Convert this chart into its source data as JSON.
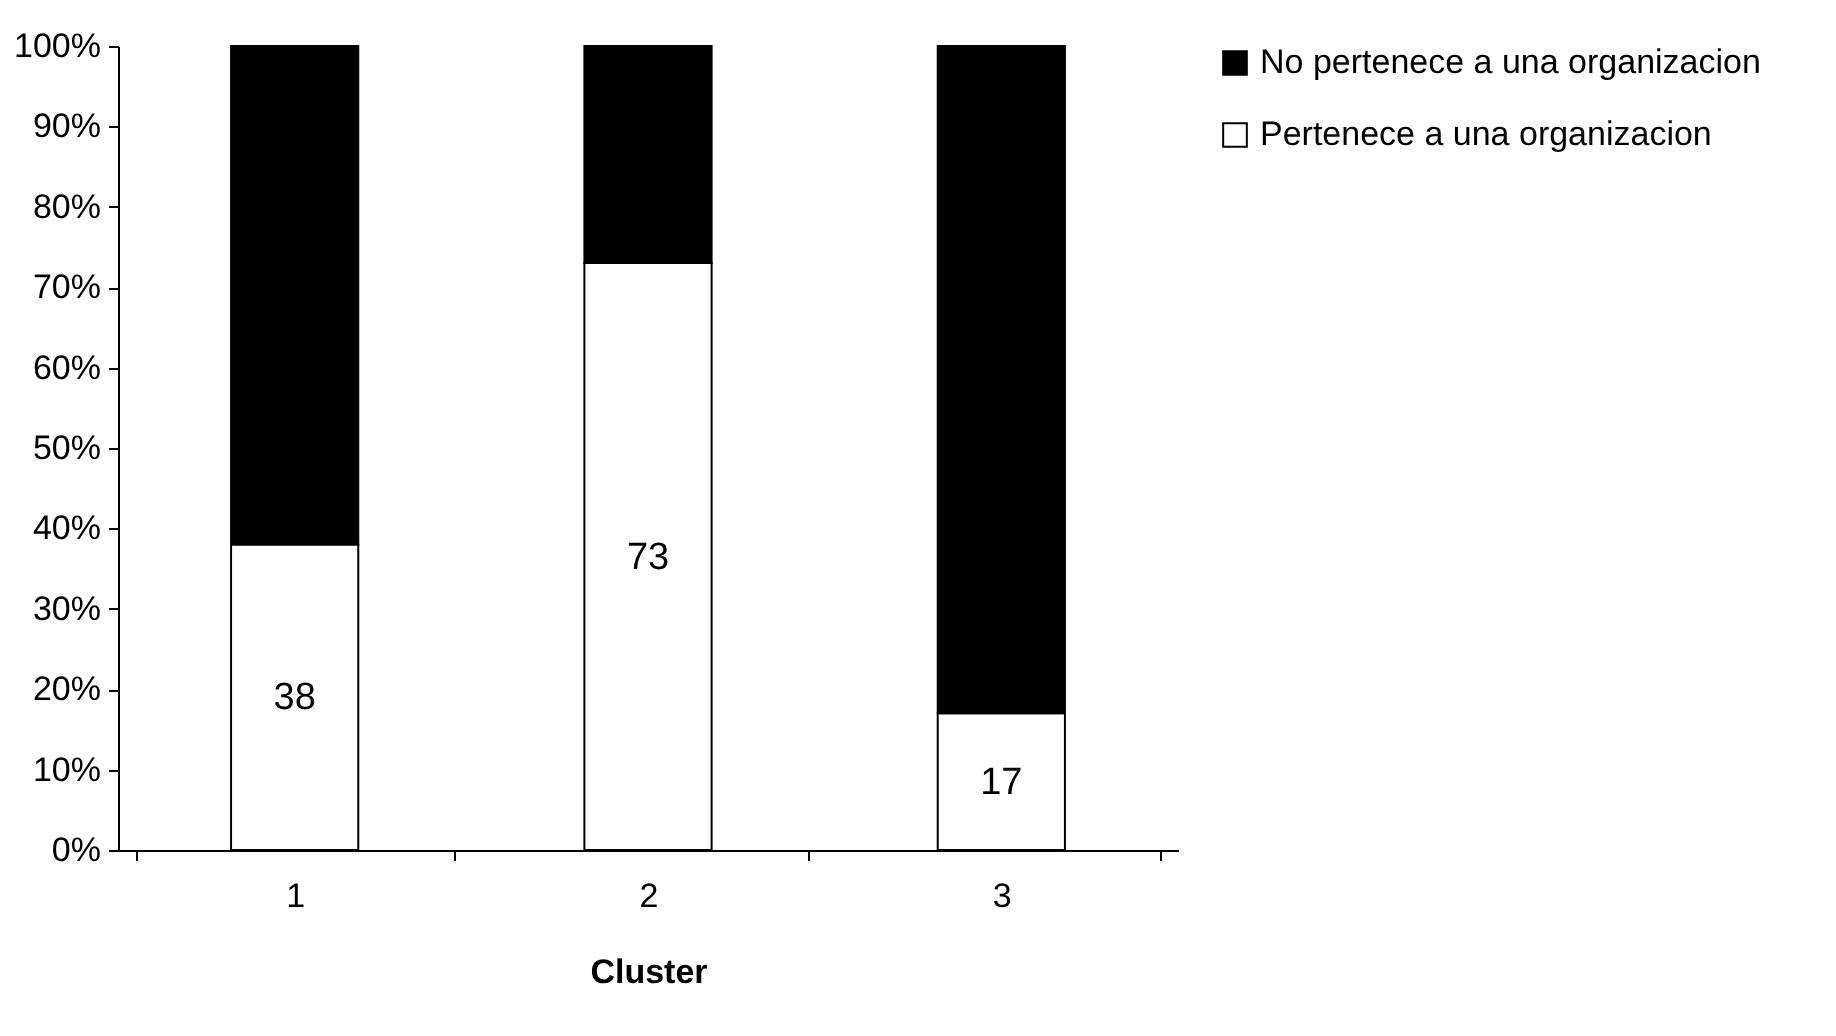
{
  "chart_data": {
    "type": "bar",
    "xlabel": "Cluster",
    "categories": [
      "1",
      "2",
      "3"
    ],
    "stacked": true,
    "series": [
      {
        "name": "Pertenece a una organizacion",
        "color": "#ffffff",
        "values": [
          38,
          73,
          17
        ],
        "value_labels": [
          "38",
          "73",
          "17"
        ]
      },
      {
        "name": "No pertenece a una organizacion",
        "color": "#000000",
        "values": [
          62,
          27,
          83
        ]
      }
    ],
    "ylim": [
      0,
      100
    ],
    "yticks": [
      {
        "value": 0,
        "label": "0%"
      },
      {
        "value": 10,
        "label": "10%"
      },
      {
        "value": 20,
        "label": "20%"
      },
      {
        "value": 30,
        "label": "30%"
      },
      {
        "value": 40,
        "label": "40%"
      },
      {
        "value": 50,
        "label": "50%"
      },
      {
        "value": 60,
        "label": "60%"
      },
      {
        "value": 70,
        "label": "70%"
      },
      {
        "value": 80,
        "label": "80%"
      },
      {
        "value": 90,
        "label": "90%"
      },
      {
        "value": 100,
        "label": "100%"
      }
    ],
    "grid": false,
    "legend": "right"
  }
}
